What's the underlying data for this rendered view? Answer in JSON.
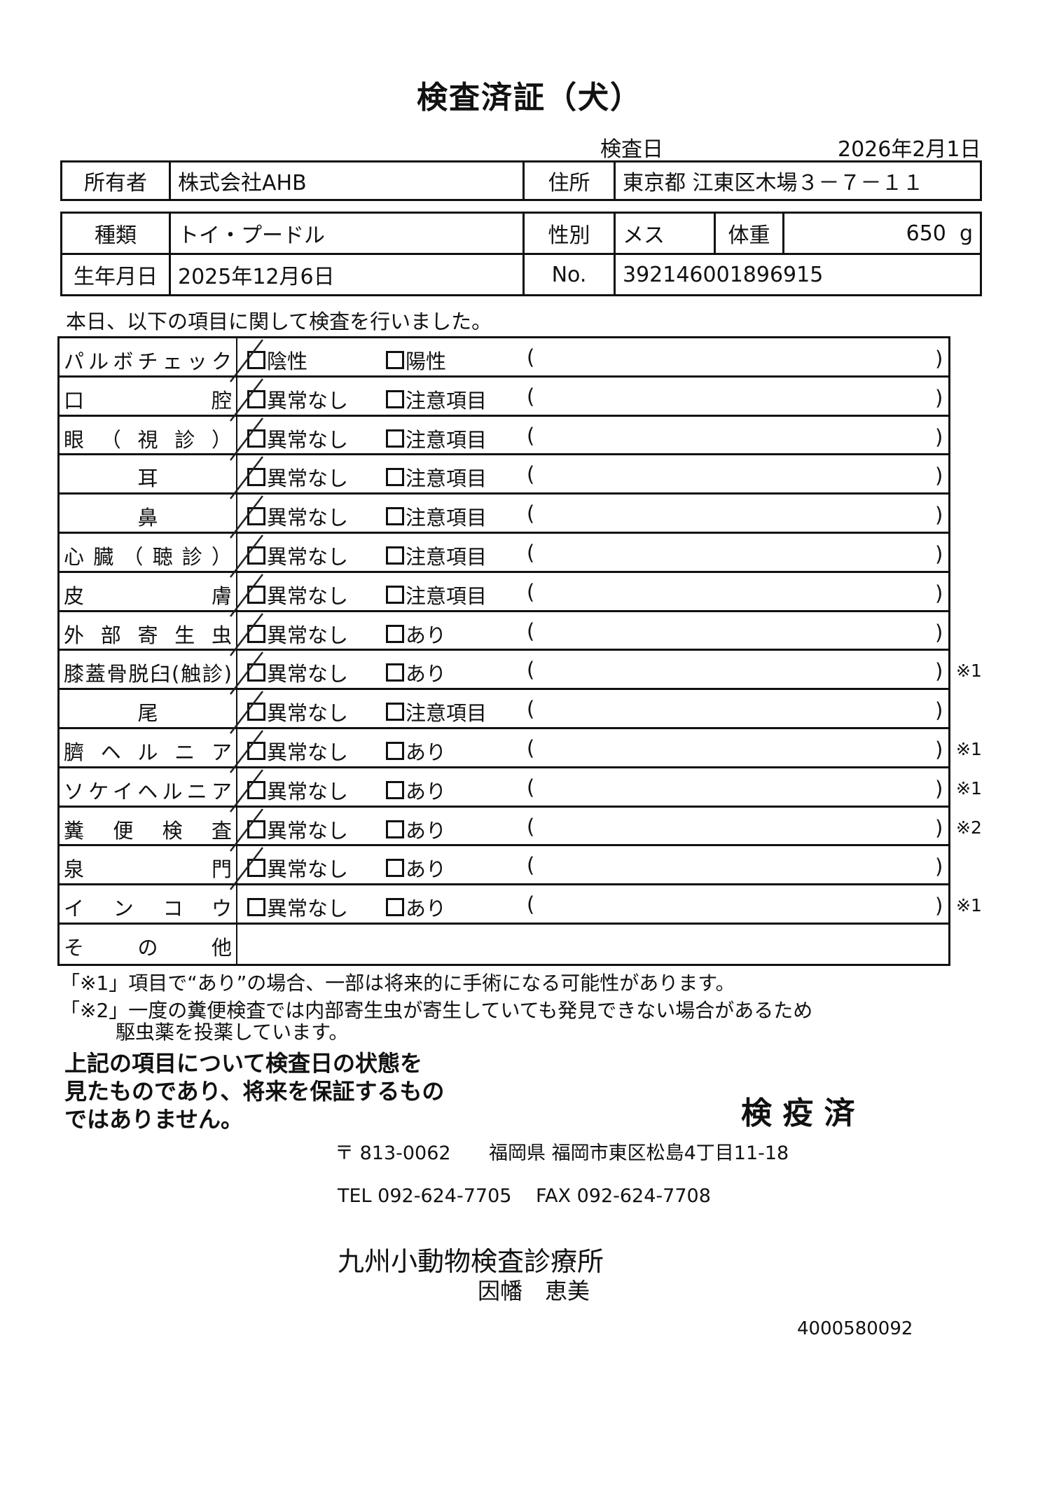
{
  "title": "検査済証（犬）",
  "exam_date_label": "検査日",
  "exam_date": "2026年2月1日",
  "owner": {
    "label": "所有者",
    "value": "株式会社AHB",
    "address_label": "住所",
    "address": "東京都 江東区木場３－７－１１"
  },
  "animal": {
    "breed_label": "種類",
    "breed": "トイ・プードル",
    "sex_label": "性別",
    "sex": "メス",
    "weight_label": "体重",
    "weight": "650",
    "weight_unit": "g",
    "dob_label": "生年月日",
    "dob": "2025年12月6日",
    "no_label": "No.",
    "no": "392146001896915"
  },
  "intro": "本日、以下の項目に関して検査を行いました。",
  "checklist": [
    {
      "label": "パルボチェック",
      "opt1": "陰性",
      "opt2": "陽性",
      "checked": true,
      "note": ""
    },
    {
      "label": "口腔",
      "opt1": "異常なし",
      "opt2": "注意項目",
      "checked": true,
      "note": ""
    },
    {
      "label": "眼（視診）",
      "opt1": "異常なし",
      "opt2": "注意項目",
      "checked": true,
      "note": ""
    },
    {
      "label": "耳",
      "center": true,
      "opt1": "異常なし",
      "opt2": "注意項目",
      "checked": true,
      "note": ""
    },
    {
      "label": "鼻",
      "center": true,
      "opt1": "異常なし",
      "opt2": "注意項目",
      "checked": true,
      "note": ""
    },
    {
      "label": "心臓（聴診）",
      "opt1": "異常なし",
      "opt2": "注意項目",
      "checked": true,
      "note": ""
    },
    {
      "label": "皮膚",
      "opt1": "異常なし",
      "opt2": "注意項目",
      "checked": true,
      "note": ""
    },
    {
      "label": "外部寄生虫",
      "opt1": "異常なし",
      "opt2": "あり",
      "checked": true,
      "note": ""
    },
    {
      "label": "膝蓋骨脱臼(触診)",
      "opt1": "異常なし",
      "opt2": "あり",
      "checked": true,
      "note": "※1"
    },
    {
      "label": "尾",
      "center": true,
      "opt1": "異常なし",
      "opt2": "注意項目",
      "checked": true,
      "note": ""
    },
    {
      "label": "臍ヘルニア",
      "opt1": "異常なし",
      "opt2": "あり",
      "checked": true,
      "note": "※1"
    },
    {
      "label": "ソケイヘルニア",
      "opt1": "異常なし",
      "opt2": "あり",
      "checked": true,
      "note": "※1"
    },
    {
      "label": "糞便検査",
      "opt1": "異常なし",
      "opt2": "あり",
      "checked": true,
      "note": "※2"
    },
    {
      "label": "泉門",
      "opt1": "異常なし",
      "opt2": "あり",
      "checked": true,
      "note": ""
    },
    {
      "label": "インコウ",
      "opt1": "異常なし",
      "opt2": "あり",
      "checked": false,
      "note": "※1"
    }
  ],
  "other_label": "その他",
  "paren_open": "(",
  "paren_close": ")",
  "footnotes": [
    "「※1」項目で“あり”の場合、一部は将来的に手術になる可能性があります。",
    "「※2」一度の糞便検査では内部寄生虫が寄生していても発見できない場合があるため",
    "駆虫薬を投薬しています。"
  ],
  "disclaimer": [
    "上記の項目について検査日の状態を",
    "見たものであり、将来を保証するもの",
    "ではありません。"
  ],
  "stamp": "検 疫 済",
  "postal": "〒 813-0062",
  "clinic_address": "福岡県 福岡市東区松島4丁目11-18",
  "tel": "TEL 092-624-7705",
  "fax": "FAX 092-624-7708",
  "clinic_name": "九州小動物検査診療所",
  "vet_name": "因幡　恵美",
  "doc_code": "4000580092"
}
